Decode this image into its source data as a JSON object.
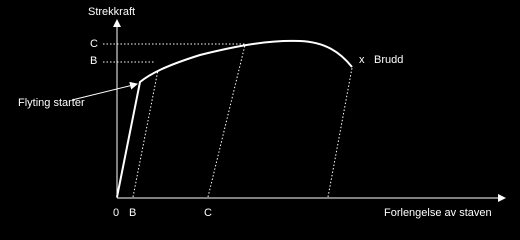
{
  "axes": {
    "y_label": "Strekkraft",
    "x_label": "Forlengelse av staven"
  },
  "y_markers": [
    "C",
    "B"
  ],
  "x_markers": [
    "0",
    "B",
    "C"
  ],
  "annotations": {
    "yield": "Flyting starter",
    "break_marker": "x",
    "break": "Brudd"
  }
}
